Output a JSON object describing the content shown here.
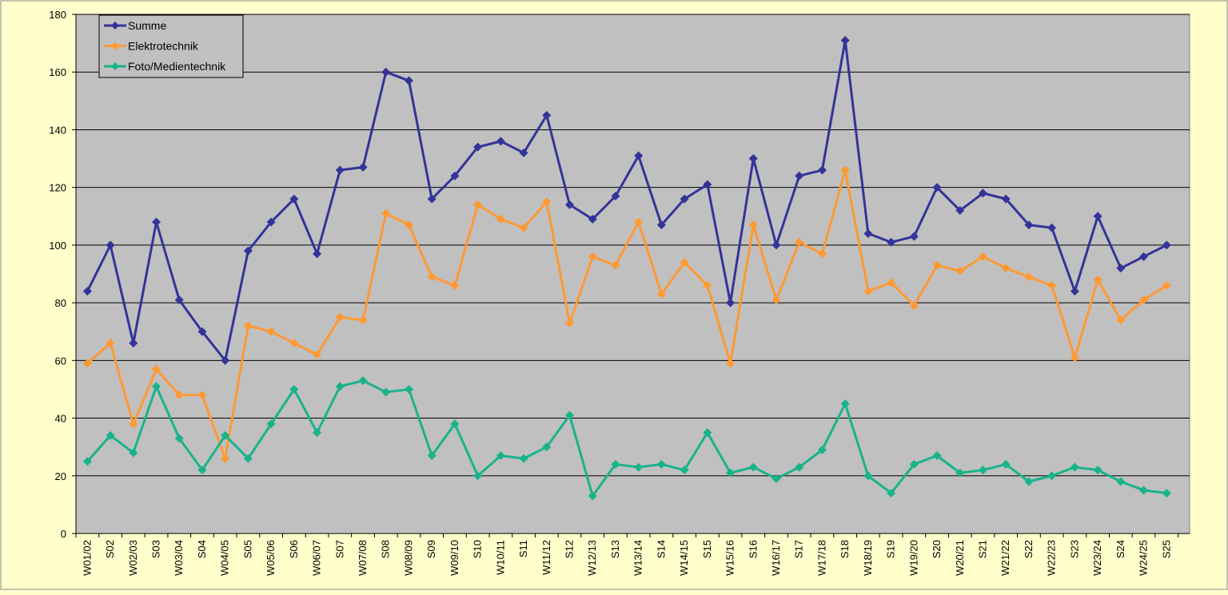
{
  "chart_data": {
    "type": "line",
    "title": "",
    "xlabel": "",
    "ylabel": "",
    "ylim": [
      0,
      180
    ],
    "yticks": [
      0,
      20,
      40,
      60,
      80,
      100,
      120,
      140,
      160,
      180
    ],
    "grid": true,
    "legend_position": "top-left",
    "background_color": "#ffffcc",
    "plot_background_color": "#c0c0c0",
    "categories": [
      "W01/02",
      "S02",
      "W02/03",
      "S03",
      "W03/04",
      "S04",
      "W04/05",
      "S05",
      "W05/06",
      "S06",
      "W06/07",
      "S07",
      "W07/08",
      "S08",
      "W08/09",
      "S09",
      "W09/10",
      "S10",
      "W10/11",
      "S11",
      "W11/12",
      "S12",
      "W12/13",
      "S13",
      "W13/14",
      "S14",
      "W14/15",
      "S15",
      "W15/16",
      "S16",
      "W16/17",
      "S17",
      "W17/18",
      "S18",
      "W18/19",
      "S19",
      "W19/20",
      "S20",
      "W20/21",
      "S21",
      "W21/22",
      "S22",
      "W22/23",
      "S23",
      "W23/24",
      "S24",
      "W24/25",
      "S25"
    ],
    "series": [
      {
        "name": "Summe",
        "color": "#333399",
        "values": [
          84,
          100,
          66,
          108,
          81,
          70,
          60,
          98,
          108,
          116,
          97,
          126,
          127,
          160,
          157,
          116,
          124,
          134,
          136,
          132,
          145,
          114,
          109,
          117,
          131,
          107,
          116,
          121,
          80,
          130,
          100,
          124,
          126,
          171,
          104,
          101,
          103,
          120,
          112,
          118,
          116,
          107,
          106,
          84,
          110,
          92,
          96,
          100
        ]
      },
      {
        "name": "Elektrotechnik",
        "color": "#ff9933",
        "values": [
          59,
          66,
          38,
          57,
          48,
          48,
          26,
          72,
          70,
          66,
          62,
          75,
          74,
          111,
          107,
          89,
          86,
          114,
          109,
          106,
          115,
          73,
          96,
          93,
          108,
          83,
          94,
          86,
          59,
          107,
          81,
          101,
          97,
          126,
          84,
          87,
          79,
          93,
          91,
          96,
          92,
          89,
          86,
          61,
          88,
          74,
          81,
          86
        ]
      },
      {
        "name": "Foto/Medientechnik",
        "color": "#19b38a",
        "values": [
          25,
          34,
          28,
          51,
          33,
          22,
          34,
          26,
          38,
          50,
          35,
          51,
          53,
          49,
          50,
          27,
          38,
          20,
          27,
          26,
          30,
          41,
          13,
          24,
          23,
          24,
          22,
          35,
          21,
          23,
          19,
          23,
          29,
          45,
          20,
          14,
          24,
          27,
          21,
          22,
          24,
          18,
          20,
          23,
          22,
          18,
          15,
          14
        ]
      }
    ]
  }
}
